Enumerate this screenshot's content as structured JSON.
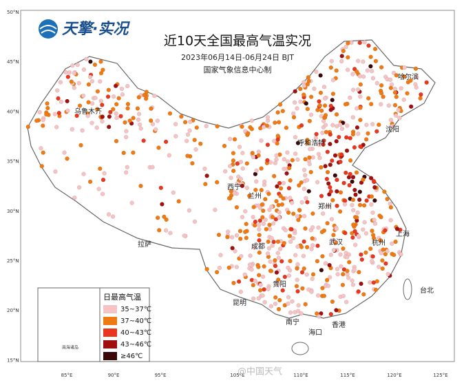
{
  "logo": "天擎·实况",
  "title": "近10天全国最高气温实况",
  "subtitle": "2023年06月14日-06月24日 BJT",
  "producer": "国家气象信息中心制",
  "latitude_labels": [
    "50°N",
    "45°N",
    "40°N",
    "35°N",
    "30°N",
    "25°N",
    "20°N",
    "15°N"
  ],
  "longitude_labels": [
    "85°E",
    "90°E",
    "95°E",
    "105°E",
    "110°E",
    "115°E",
    "120°E",
    "125°E"
  ],
  "cities": [
    "乌鲁木齐",
    "哈尔滨",
    "沈阳",
    "呼和浩特",
    "西宁",
    "兰州",
    "郑州",
    "成都",
    "武汉",
    "杭州",
    "上海",
    "拉萨",
    "昆明",
    "贵阳",
    "南宁",
    "台北",
    "香港",
    "海口"
  ],
  "legend": {
    "title": "日最高气温",
    "items": [
      {
        "label": "35~37℃",
        "color": "#f6c3c5"
      },
      {
        "label": "37~40℃",
        "color": "#f07a12"
      },
      {
        "label": "40~43℃",
        "color": "#e8361f"
      },
      {
        "label": "43~46℃",
        "color": "#a00f0f"
      },
      {
        "label": "≥46℃",
        "color": "#3a0808"
      }
    ]
  },
  "inset_label": "南海诸岛",
  "watermark": "@中国天气"
}
